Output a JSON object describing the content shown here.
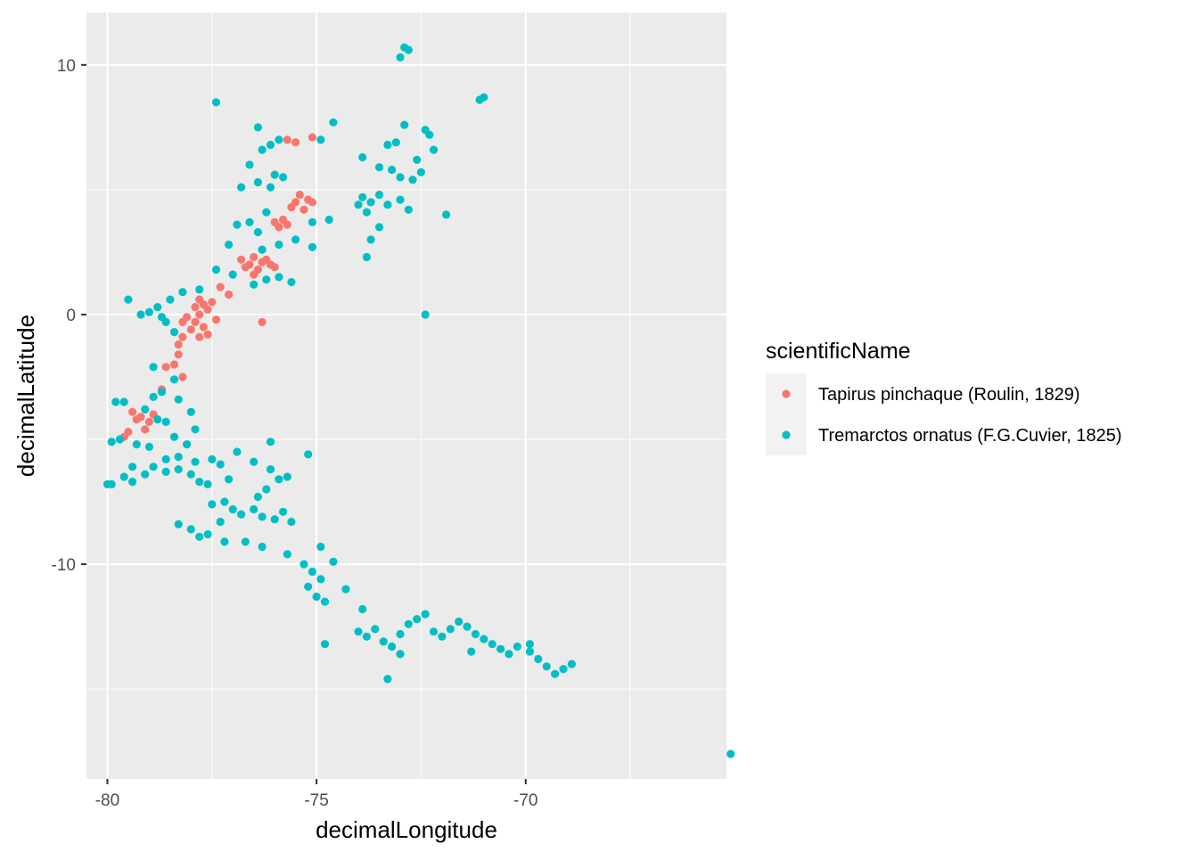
{
  "chart_data": {
    "type": "scatter",
    "title": "",
    "xlabel": "decimalLongitude",
    "ylabel": "decimalLatitude",
    "xlim": [
      -80.5,
      -65.2
    ],
    "ylim": [
      -18.6,
      12.1
    ],
    "x_ticks": [
      -80,
      -75,
      -70
    ],
    "y_ticks": [
      -10,
      0,
      10
    ],
    "x_tick_labels": [
      "-80",
      "-75",
      "-70"
    ],
    "y_tick_labels": [
      "-10",
      "0",
      "10"
    ],
    "grid": true,
    "panel_background": "#EBEBEB",
    "legend": {
      "title": "scientificName",
      "placement": "right",
      "entries": [
        "Tapirus pinchaque (Roulin, 1829)",
        "Tremarctos ornatus (F.G.Cuvier, 1825)"
      ]
    },
    "series": [
      {
        "name": "Tapirus pinchaque (Roulin, 1829)",
        "color": "#F8766D",
        "points": [
          [
            -75.4,
            4.8
          ],
          [
            -75.2,
            4.6
          ],
          [
            -75.5,
            4.5
          ],
          [
            -75.3,
            4.2
          ],
          [
            -75.1,
            4.5
          ],
          [
            -75.6,
            4.3
          ],
          [
            -75.8,
            3.8
          ],
          [
            -75.9,
            3.5
          ],
          [
            -76.0,
            3.7
          ],
          [
            -75.7,
            3.6
          ],
          [
            -76.5,
            2.3
          ],
          [
            -76.6,
            2.0
          ],
          [
            -76.4,
            1.8
          ],
          [
            -76.3,
            2.1
          ],
          [
            -76.7,
            1.9
          ],
          [
            -76.2,
            2.2
          ],
          [
            -76.5,
            1.6
          ],
          [
            -76.1,
            2.0
          ],
          [
            -76.8,
            2.2
          ],
          [
            -76.0,
            1.9
          ],
          [
            -75.7,
            7.0
          ],
          [
            -75.5,
            6.9
          ],
          [
            -75.1,
            7.1
          ],
          [
            -76.3,
            -0.3
          ],
          [
            -77.3,
            1.1
          ],
          [
            -77.1,
            0.8
          ],
          [
            -77.5,
            0.5
          ],
          [
            -77.7,
            0.4
          ],
          [
            -77.4,
            -0.2
          ],
          [
            -77.6,
            0.2
          ],
          [
            -77.8,
            0.0
          ],
          [
            -77.9,
            -0.3
          ],
          [
            -78.0,
            -0.6
          ],
          [
            -77.8,
            -0.9
          ],
          [
            -78.1,
            -0.1
          ],
          [
            -77.7,
            -0.5
          ],
          [
            -78.2,
            -0.3
          ],
          [
            -77.9,
            0.3
          ],
          [
            -78.3,
            -1.2
          ],
          [
            -78.2,
            -0.9
          ],
          [
            -78.3,
            -1.6
          ],
          [
            -78.4,
            -2.0
          ],
          [
            -78.6,
            -2.1
          ],
          [
            -78.2,
            -2.5
          ],
          [
            -78.7,
            -3.0
          ],
          [
            -79.2,
            -4.1
          ],
          [
            -79.0,
            -4.3
          ],
          [
            -79.1,
            -4.6
          ],
          [
            -79.3,
            -4.2
          ],
          [
            -79.5,
            -4.7
          ],
          [
            -79.6,
            -4.9
          ],
          [
            -78.9,
            -4.0
          ],
          [
            -79.4,
            -3.9
          ],
          [
            -77.8,
            0.6
          ],
          [
            -77.6,
            -0.8
          ]
        ]
      },
      {
        "name": "Tremarctos ornatus (F.G.Cuvier, 1825)",
        "color": "#00BFC4",
        "points": [
          [
            -72.9,
            10.7
          ],
          [
            -73.0,
            10.3
          ],
          [
            -72.8,
            10.6
          ],
          [
            -71.1,
            8.6
          ],
          [
            -71.0,
            8.7
          ],
          [
            -77.4,
            8.5
          ],
          [
            -74.6,
            7.7
          ],
          [
            -76.4,
            7.5
          ],
          [
            -72.9,
            7.6
          ],
          [
            -72.4,
            7.4
          ],
          [
            -72.3,
            7.2
          ],
          [
            -74.9,
            7.0
          ],
          [
            -75.9,
            7.0
          ],
          [
            -76.1,
            6.8
          ],
          [
            -76.3,
            6.6
          ],
          [
            -73.3,
            6.8
          ],
          [
            -73.1,
            6.9
          ],
          [
            -72.2,
            6.6
          ],
          [
            -76.6,
            6.0
          ],
          [
            -73.9,
            6.3
          ],
          [
            -72.6,
            6.2
          ],
          [
            -72.5,
            5.7
          ],
          [
            -76.0,
            5.6
          ],
          [
            -75.8,
            5.5
          ],
          [
            -73.5,
            5.9
          ],
          [
            -73.2,
            5.8
          ],
          [
            -73.0,
            5.5
          ],
          [
            -72.7,
            5.4
          ],
          [
            -76.8,
            5.1
          ],
          [
            -76.4,
            5.3
          ],
          [
            -76.1,
            5.1
          ],
          [
            -73.9,
            4.7
          ],
          [
            -73.7,
            4.5
          ],
          [
            -73.5,
            4.8
          ],
          [
            -73.3,
            4.4
          ],
          [
            -73.0,
            4.6
          ],
          [
            -72.8,
            4.2
          ],
          [
            -74.0,
            4.4
          ],
          [
            -73.8,
            4.1
          ],
          [
            -71.9,
            4.0
          ],
          [
            -76.2,
            4.1
          ],
          [
            -76.6,
            3.7
          ],
          [
            -76.9,
            3.6
          ],
          [
            -76.4,
            3.3
          ],
          [
            -75.1,
            3.7
          ],
          [
            -74.7,
            3.8
          ],
          [
            -73.5,
            3.5
          ],
          [
            -73.7,
            3.0
          ],
          [
            -75.5,
            3.0
          ],
          [
            -75.1,
            2.7
          ],
          [
            -75.9,
            2.8
          ],
          [
            -76.3,
            2.6
          ],
          [
            -77.1,
            2.8
          ],
          [
            -73.8,
            2.3
          ],
          [
            -77.4,
            1.8
          ],
          [
            -77.0,
            1.6
          ],
          [
            -76.5,
            1.2
          ],
          [
            -75.6,
            1.3
          ],
          [
            -75.9,
            1.5
          ],
          [
            -76.2,
            1.4
          ],
          [
            -72.4,
            0.0
          ],
          [
            -77.8,
            1.0
          ],
          [
            -78.2,
            0.9
          ],
          [
            -78.5,
            0.6
          ],
          [
            -78.8,
            0.3
          ],
          [
            -79.0,
            0.1
          ],
          [
            -79.2,
            0.0
          ],
          [
            -78.6,
            -0.3
          ],
          [
            -78.4,
            -0.7
          ],
          [
            -78.7,
            -0.1
          ],
          [
            -79.5,
            0.6
          ],
          [
            -78.9,
            -2.1
          ],
          [
            -78.4,
            -2.6
          ],
          [
            -78.7,
            -3.1
          ],
          [
            -78.9,
            -3.3
          ],
          [
            -78.3,
            -3.4
          ],
          [
            -78.0,
            -3.9
          ],
          [
            -78.8,
            -4.2
          ],
          [
            -79.6,
            -3.5
          ],
          [
            -79.8,
            -3.5
          ],
          [
            -79.1,
            -3.8
          ],
          [
            -79.3,
            -5.2
          ],
          [
            -79.7,
            -5.0
          ],
          [
            -79.9,
            -5.1
          ],
          [
            -79.0,
            -5.3
          ],
          [
            -78.6,
            -4.3
          ],
          [
            -78.4,
            -4.9
          ],
          [
            -77.9,
            -4.6
          ],
          [
            -78.1,
            -5.2
          ],
          [
            -79.4,
            -6.1
          ],
          [
            -79.6,
            -6.5
          ],
          [
            -79.4,
            -6.7
          ],
          [
            -79.9,
            -6.8
          ],
          [
            -78.9,
            -6.1
          ],
          [
            -78.6,
            -6.3
          ],
          [
            -78.3,
            -6.2
          ],
          [
            -78.0,
            -6.4
          ],
          [
            -77.8,
            -6.7
          ],
          [
            -77.6,
            -6.8
          ],
          [
            -77.9,
            -5.9
          ],
          [
            -78.3,
            -5.7
          ],
          [
            -78.6,
            -5.8
          ],
          [
            -77.5,
            -5.8
          ],
          [
            -77.3,
            -6.0
          ],
          [
            -76.9,
            -5.5
          ],
          [
            -76.5,
            -5.9
          ],
          [
            -76.1,
            -6.2
          ],
          [
            -75.9,
            -6.6
          ],
          [
            -75.7,
            -6.5
          ],
          [
            -76.2,
            -7.0
          ],
          [
            -76.4,
            -7.3
          ],
          [
            -76.5,
            -7.8
          ],
          [
            -76.3,
            -8.1
          ],
          [
            -76.0,
            -8.2
          ],
          [
            -75.8,
            -7.9
          ],
          [
            -75.6,
            -8.3
          ],
          [
            -77.5,
            -7.6
          ],
          [
            -77.2,
            -7.5
          ],
          [
            -77.0,
            -7.8
          ],
          [
            -76.8,
            -8.0
          ],
          [
            -77.3,
            -8.3
          ],
          [
            -77.6,
            -8.8
          ],
          [
            -77.8,
            -8.9
          ],
          [
            -78.0,
            -8.6
          ],
          [
            -78.3,
            -8.4
          ],
          [
            -77.2,
            -9.1
          ],
          [
            -76.7,
            -9.1
          ],
          [
            -76.3,
            -9.3
          ],
          [
            -75.7,
            -9.6
          ],
          [
            -75.3,
            -10.0
          ],
          [
            -75.1,
            -10.3
          ],
          [
            -74.9,
            -10.6
          ],
          [
            -75.2,
            -10.9
          ],
          [
            -75.0,
            -11.3
          ],
          [
            -74.8,
            -11.5
          ],
          [
            -74.9,
            -9.3
          ],
          [
            -74.6,
            -9.9
          ],
          [
            -74.8,
            -13.2
          ],
          [
            -74.0,
            -12.7
          ],
          [
            -73.8,
            -12.9
          ],
          [
            -73.6,
            -12.6
          ],
          [
            -73.4,
            -13.1
          ],
          [
            -73.2,
            -13.3
          ],
          [
            -73.0,
            -12.8
          ],
          [
            -72.8,
            -12.4
          ],
          [
            -72.6,
            -12.2
          ],
          [
            -72.4,
            -12.0
          ],
          [
            -72.2,
            -12.7
          ],
          [
            -72.0,
            -12.9
          ],
          [
            -71.8,
            -12.6
          ],
          [
            -71.6,
            -12.3
          ],
          [
            -71.4,
            -12.5
          ],
          [
            -71.2,
            -12.8
          ],
          [
            -71.0,
            -13.0
          ],
          [
            -70.8,
            -13.2
          ],
          [
            -70.6,
            -13.4
          ],
          [
            -70.4,
            -13.6
          ],
          [
            -70.2,
            -13.3
          ],
          [
            -69.9,
            -13.5
          ],
          [
            -69.7,
            -13.8
          ],
          [
            -69.5,
            -14.1
          ],
          [
            -69.3,
            -14.4
          ],
          [
            -69.1,
            -14.2
          ],
          [
            -68.9,
            -14.0
          ],
          [
            -69.9,
            -13.2
          ],
          [
            -73.3,
            -14.6
          ],
          [
            -73.0,
            -13.6
          ],
          [
            -65.1,
            -17.6
          ],
          [
            -80.0,
            -6.8
          ],
          [
            -79.1,
            -6.4
          ],
          [
            -77.1,
            -6.6
          ],
          [
            -76.1,
            -5.1
          ],
          [
            -75.2,
            -5.6
          ],
          [
            -74.3,
            -11.0
          ],
          [
            -73.9,
            -11.8
          ],
          [
            -71.3,
            -13.5
          ]
        ]
      }
    ]
  }
}
